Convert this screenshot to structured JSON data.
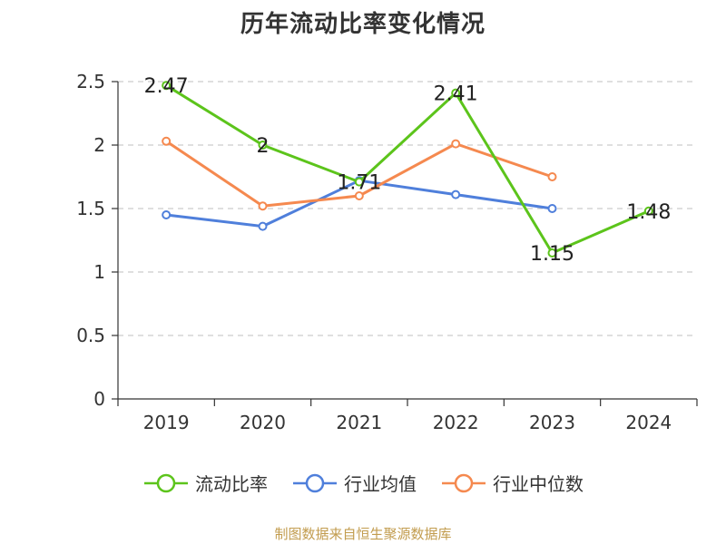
{
  "title": "历年流动比率变化情况",
  "source_note": "制图数据来自恒生聚源数据库",
  "chart_data": {
    "type": "line",
    "title": "历年流动比率变化情况",
    "xlabel": "",
    "ylabel": "",
    "categories": [
      "2019",
      "2020",
      "2021",
      "2022",
      "2023",
      "2024"
    ],
    "ylim": [
      0,
      2.5
    ],
    "y_ticks": [
      "0",
      "0.5",
      "1",
      "1.5",
      "2",
      "2.5"
    ],
    "grid": true,
    "legend_position": "bottom",
    "series": [
      {
        "name": "流动比率",
        "color": "#5cc41b",
        "values": [
          2.47,
          2.0,
          1.71,
          2.41,
          1.15,
          1.48
        ],
        "labels": [
          "2.47",
          "2",
          "1.71",
          "2.41",
          "1.15",
          "1.48"
        ]
      },
      {
        "name": "行业均值",
        "color": "#4f7fdb",
        "values": [
          1.45,
          1.36,
          1.72,
          1.61,
          1.5,
          null
        ],
        "labels": []
      },
      {
        "name": "行业中位数",
        "color": "#f5894f",
        "values": [
          2.03,
          1.52,
          1.6,
          2.01,
          1.75,
          null
        ],
        "labels": []
      }
    ]
  }
}
